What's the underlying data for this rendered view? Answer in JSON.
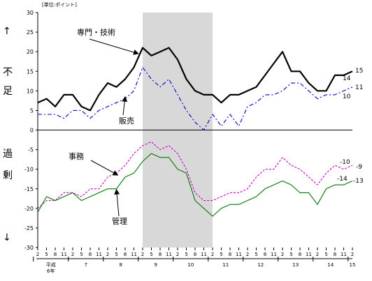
{
  "unit_label": "[単位:ポイント]",
  "side_labels": [
    "↑",
    "不",
    "足",
    "過",
    "剰",
    "↓"
  ],
  "chart_data": {
    "type": "line",
    "ylim": [
      -30,
      30
    ],
    "yticks": [
      30,
      25,
      20,
      15,
      10,
      5,
      0,
      -5,
      -10,
      -15,
      -20,
      -25,
      -30
    ],
    "month_ticks": [
      "2",
      "5",
      "8",
      "11",
      "2",
      "5",
      "8",
      "11",
      "2",
      "5",
      "8",
      "11",
      "2",
      "5",
      "8",
      "11",
      "2",
      "5",
      "8",
      "11",
      "2",
      "5",
      "8",
      "11",
      "2",
      "5",
      "8",
      "11",
      "2",
      "5",
      "8",
      "11",
      "2",
      "5",
      "8",
      "11",
      "2"
    ],
    "year_ticks": [
      {
        "label": "平成\n6年",
        "start": 0,
        "end": 3
      },
      {
        "label": "7",
        "start": 4,
        "end": 7
      },
      {
        "label": "8",
        "start": 8,
        "end": 11
      },
      {
        "label": "9",
        "start": 12,
        "end": 15
      },
      {
        "label": "10",
        "start": 16,
        "end": 19
      },
      {
        "label": "11",
        "start": 20,
        "end": 23
      },
      {
        "label": "12",
        "start": 24,
        "end": 27
      },
      {
        "label": "13",
        "start": 28,
        "end": 31
      },
      {
        "label": "14",
        "start": 32,
        "end": 35
      },
      {
        "label": "15",
        "start": 36,
        "end": 36
      }
    ],
    "shaded_range": [
      12,
      20
    ],
    "series": [
      {
        "name": "専門・技術",
        "color": "#000000",
        "style": "solid-thick",
        "values": [
          7,
          8,
          6,
          9,
          9,
          6,
          5,
          9,
          12,
          11,
          13,
          16,
          21,
          19,
          20,
          21,
          18,
          13,
          10,
          9,
          9,
          7,
          9,
          9,
          10,
          11,
          14,
          17,
          20,
          15,
          15,
          12,
          10,
          10,
          14,
          14,
          15
        ]
      },
      {
        "name": "販売",
        "color": "#0000cc",
        "style": "dashdot",
        "values": [
          4,
          4,
          4,
          3,
          5,
          5,
          3,
          5,
          6,
          7,
          8,
          10,
          16,
          13,
          11,
          13,
          9,
          5,
          2,
          0,
          4,
          1,
          4,
          1,
          6,
          7,
          9,
          9,
          10,
          12,
          12,
          10,
          8,
          9,
          9,
          10,
          11
        ]
      },
      {
        "name": "事務",
        "color": "#cc00cc",
        "style": "dashed",
        "values": [
          -20,
          -18,
          -18,
          -16,
          -16,
          -17,
          -15,
          -15,
          -12,
          -11,
          -9,
          -6,
          -4,
          -3,
          -5,
          -4,
          -6,
          -10,
          -16,
          -18,
          -18,
          -17,
          -16,
          -16,
          -15,
          -12,
          -10,
          -10,
          -7,
          -9,
          -10,
          -12,
          -14,
          -11,
          -9,
          -10,
          -9
        ]
      },
      {
        "name": "管理",
        "color": "#007700",
        "style": "solid",
        "values": [
          -21,
          -17,
          -18,
          -17,
          -16,
          -18,
          -17,
          -16,
          -15,
          -15,
          -12,
          -11,
          -8,
          -6,
          -7,
          -7,
          -10,
          -11,
          -18,
          -20,
          -22,
          -20,
          -19,
          -19,
          -18,
          -17,
          -15,
          -14,
          -13,
          -14,
          -16,
          -16,
          -19,
          -15,
          -14,
          -14,
          -13
        ]
      }
    ],
    "series_labels": [
      {
        "text": "専門・技術"
      },
      {
        "text": "販売"
      },
      {
        "text": "事務"
      },
      {
        "text": "管理"
      }
    ],
    "end_labels": [
      "15",
      "14",
      "11",
      "10",
      "-10",
      "-9",
      "-14",
      "-13"
    ]
  }
}
